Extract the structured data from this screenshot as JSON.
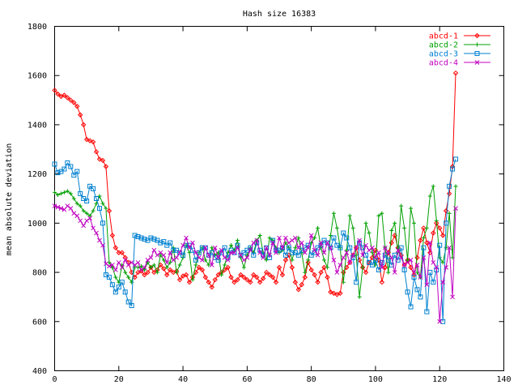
{
  "chart_data": {
    "type": "line",
    "title": "Hash size 16383",
    "xlabel": "",
    "ylabel": "mean absolute deviation",
    "xlim": [
      0,
      140
    ],
    "ylim": [
      400,
      1800
    ],
    "xticks": [
      0,
      20,
      40,
      60,
      80,
      100,
      120,
      140
    ],
    "yticks": [
      400,
      600,
      800,
      1000,
      1200,
      1400,
      1600,
      1800
    ],
    "grid": false,
    "legend_position": "top-right",
    "series": [
      {
        "name": "abcd-1",
        "color": "#ff0000",
        "marker": "diamond",
        "x": [
          0,
          1,
          2,
          3,
          4,
          5,
          6,
          7,
          8,
          9,
          10,
          11,
          12,
          13,
          14,
          15,
          16,
          17,
          18,
          19,
          20,
          21,
          22,
          23,
          24,
          25,
          26,
          27,
          28,
          29,
          30,
          31,
          32,
          33,
          34,
          35,
          36,
          37,
          38,
          39,
          40,
          41,
          42,
          43,
          44,
          45,
          46,
          47,
          48,
          49,
          50,
          51,
          52,
          53,
          54,
          55,
          56,
          57,
          58,
          59,
          60,
          61,
          62,
          63,
          64,
          65,
          66,
          67,
          68,
          69,
          70,
          71,
          72,
          73,
          74,
          75,
          76,
          77,
          78,
          79,
          80,
          81,
          82,
          83,
          84,
          85,
          86,
          87,
          88,
          89,
          90,
          91,
          92,
          93,
          94,
          95,
          96,
          97,
          98,
          99,
          100,
          101,
          102,
          103,
          104,
          105,
          106,
          107,
          108,
          109,
          110,
          111,
          112,
          113,
          114,
          115,
          116,
          117,
          118,
          119,
          120,
          121,
          122,
          123,
          124,
          125
        ],
        "y": [
          1540,
          1525,
          1515,
          1520,
          1510,
          1500,
          1490,
          1475,
          1440,
          1400,
          1340,
          1335,
          1330,
          1290,
          1260,
          1255,
          1230,
          1050,
          950,
          900,
          880,
          880,
          860,
          840,
          800,
          780,
          800,
          805,
          790,
          800,
          820,
          800,
          810,
          830,
          815,
          790,
          810,
          800,
          805,
          770,
          785,
          790,
          760,
          780,
          800,
          820,
          810,
          780,
          760,
          740,
          770,
          790,
          800,
          810,
          820,
          780,
          760,
          770,
          790,
          780,
          770,
          760,
          790,
          780,
          760,
          775,
          800,
          790,
          780,
          760,
          820,
          790,
          850,
          870,
          820,
          760,
          730,
          750,
          780,
          840,
          810,
          790,
          760,
          800,
          820,
          780,
          720,
          715,
          710,
          715,
          800,
          820,
          840,
          870,
          900,
          850,
          820,
          800,
          840,
          860,
          890,
          850,
          760,
          820,
          880,
          920,
          950,
          900,
          870,
          830,
          850,
          820,
          790,
          860,
          930,
          980,
          920,
          880,
          960,
          1000,
          980,
          950,
          1050,
          1120,
          1230,
          1610
        ]
      },
      {
        "name": "abcd-2",
        "color": "#00a000",
        "marker": "plus",
        "x": [
          0,
          1,
          2,
          3,
          4,
          5,
          6,
          7,
          8,
          9,
          10,
          11,
          12,
          13,
          14,
          15,
          16,
          17,
          18,
          19,
          20,
          21,
          22,
          23,
          24,
          25,
          26,
          27,
          28,
          29,
          30,
          31,
          32,
          33,
          34,
          35,
          36,
          37,
          38,
          39,
          40,
          41,
          42,
          43,
          44,
          45,
          46,
          47,
          48,
          49,
          50,
          51,
          52,
          53,
          54,
          55,
          56,
          57,
          58,
          59,
          60,
          61,
          62,
          63,
          64,
          65,
          66,
          67,
          68,
          69,
          70,
          71,
          72,
          73,
          74,
          75,
          76,
          77,
          78,
          79,
          80,
          81,
          82,
          83,
          84,
          85,
          86,
          87,
          88,
          89,
          90,
          91,
          92,
          93,
          94,
          95,
          96,
          97,
          98,
          99,
          100,
          101,
          102,
          103,
          104,
          105,
          106,
          107,
          108,
          109,
          110,
          111,
          112,
          113,
          114,
          115,
          116,
          117,
          118,
          119,
          120,
          121,
          122,
          123,
          124,
          125
        ],
        "y": [
          1125,
          1115,
          1120,
          1125,
          1130,
          1120,
          1100,
          1080,
          1070,
          1050,
          1040,
          1030,
          1050,
          1080,
          1110,
          1080,
          1060,
          840,
          820,
          780,
          760,
          830,
          800,
          780,
          760,
          820,
          820,
          825,
          810,
          840,
          820,
          830,
          800,
          870,
          850,
          820,
          840,
          900,
          800,
          830,
          860,
          910,
          880,
          770,
          830,
          880,
          900,
          850,
          830,
          900,
          870,
          880,
          790,
          830,
          880,
          910,
          890,
          930,
          860,
          820,
          870,
          900,
          880,
          930,
          950,
          880,
          850,
          940,
          930,
          900,
          880,
          890,
          920,
          900,
          850,
          900,
          940,
          880,
          800,
          850,
          920,
          940,
          980,
          900,
          850,
          820,
          950,
          1040,
          980,
          900,
          760,
          890,
          1030,
          980,
          870,
          700,
          820,
          1000,
          960,
          880,
          830,
          1030,
          1040,
          900,
          800,
          970,
          1000,
          880,
          1070,
          980,
          850,
          1060,
          1000,
          800,
          780,
          940,
          980,
          1110,
          1150,
          1010,
          860,
          840,
          900,
          1040,
          860,
          1150
        ]
      },
      {
        "name": "abcd-3",
        "color": "#0080d0",
        "marker": "square",
        "x": [
          0,
          1,
          2,
          3,
          4,
          5,
          6,
          7,
          8,
          9,
          10,
          11,
          12,
          13,
          14,
          15,
          16,
          17,
          18,
          19,
          20,
          21,
          22,
          23,
          24,
          25,
          26,
          27,
          28,
          29,
          30,
          31,
          32,
          33,
          34,
          35,
          36,
          37,
          38,
          39,
          40,
          41,
          42,
          43,
          44,
          45,
          46,
          47,
          48,
          49,
          50,
          51,
          52,
          53,
          54,
          55,
          56,
          57,
          58,
          59,
          60,
          61,
          62,
          63,
          64,
          65,
          66,
          67,
          68,
          69,
          70,
          71,
          72,
          73,
          74,
          75,
          76,
          77,
          78,
          79,
          80,
          81,
          82,
          83,
          84,
          85,
          86,
          87,
          88,
          89,
          90,
          91,
          92,
          93,
          94,
          95,
          96,
          97,
          98,
          99,
          100,
          101,
          102,
          103,
          104,
          105,
          106,
          107,
          108,
          109,
          110,
          111,
          112,
          113,
          114,
          115,
          116,
          117,
          118,
          119,
          120,
          121,
          122,
          123,
          124,
          125
        ],
        "y": [
          1240,
          1205,
          1210,
          1220,
          1245,
          1230,
          1195,
          1210,
          1120,
          1100,
          1090,
          1150,
          1140,
          1100,
          1060,
          1000,
          790,
          780,
          750,
          720,
          740,
          760,
          720,
          680,
          665,
          950,
          945,
          940,
          935,
          930,
          940,
          935,
          930,
          920,
          925,
          910,
          920,
          890,
          890,
          880,
          870,
          910,
          910,
          890,
          850,
          880,
          900,
          900,
          870,
          880,
          860,
          850,
          880,
          900,
          860,
          890,
          880,
          910,
          870,
          880,
          890,
          900,
          870,
          920,
          890,
          870,
          900,
          860,
          930,
          890,
          890,
          900,
          870,
          900,
          880,
          880,
          870,
          890,
          900,
          910,
          870,
          880,
          900,
          910,
          930,
          920,
          900,
          940,
          910,
          900,
          960,
          940,
          900,
          860,
          760,
          920,
          900,
          870,
          840,
          830,
          850,
          810,
          840,
          870,
          850,
          830,
          870,
          850,
          900,
          810,
          720,
          660,
          780,
          730,
          700,
          900,
          640,
          800,
          760,
          810,
          910,
          600,
          1000,
          1150,
          1220,
          1260
        ]
      },
      {
        "name": "abcd-4",
        "color": "#c000c0",
        "marker": "cross",
        "x": [
          0,
          1,
          2,
          3,
          4,
          5,
          6,
          7,
          8,
          9,
          10,
          11,
          12,
          13,
          14,
          15,
          16,
          17,
          18,
          19,
          20,
          21,
          22,
          23,
          24,
          25,
          26,
          27,
          28,
          29,
          30,
          31,
          32,
          33,
          34,
          35,
          36,
          37,
          38,
          39,
          40,
          41,
          42,
          43,
          44,
          45,
          46,
          47,
          48,
          49,
          50,
          51,
          52,
          53,
          54,
          55,
          56,
          57,
          58,
          59,
          60,
          61,
          62,
          63,
          64,
          65,
          66,
          67,
          68,
          69,
          70,
          71,
          72,
          73,
          74,
          75,
          76,
          77,
          78,
          79,
          80,
          81,
          82,
          83,
          84,
          85,
          86,
          87,
          88,
          89,
          90,
          91,
          92,
          93,
          94,
          95,
          96,
          97,
          98,
          99,
          100,
          101,
          102,
          103,
          104,
          105,
          106,
          107,
          108,
          109,
          110,
          111,
          112,
          113,
          114,
          115,
          116,
          117,
          118,
          119,
          120,
          121,
          122,
          123,
          124,
          125
        ],
        "y": [
          1070,
          1065,
          1060,
          1055,
          1070,
          1060,
          1040,
          1030,
          1010,
          990,
          1010,
          1020,
          980,
          960,
          930,
          910,
          835,
          825,
          830,
          810,
          840,
          820,
          850,
          830,
          840,
          830,
          840,
          810,
          820,
          850,
          860,
          890,
          870,
          880,
          870,
          840,
          880,
          850,
          860,
          880,
          910,
          940,
          900,
          920,
          880,
          860,
          850,
          900,
          870,
          830,
          900,
          860,
          890,
          860,
          850,
          880,
          880,
          900,
          870,
          850,
          860,
          890,
          920,
          930,
          880,
          860,
          900,
          870,
          920,
          880,
          940,
          900,
          940,
          920,
          930,
          940,
          900,
          920,
          880,
          900,
          950,
          890,
          870,
          920,
          880,
          920,
          900,
          850,
          800,
          830,
          860,
          880,
          840,
          870,
          900,
          930,
          870,
          910,
          890,
          900,
          860,
          880,
          820,
          900,
          880,
          860,
          800,
          890,
          860,
          830,
          840,
          850,
          800,
          830,
          780,
          860,
          750,
          920,
          840,
          820,
          600,
          760,
          820,
          900,
          700,
          1060
        ]
      }
    ]
  }
}
